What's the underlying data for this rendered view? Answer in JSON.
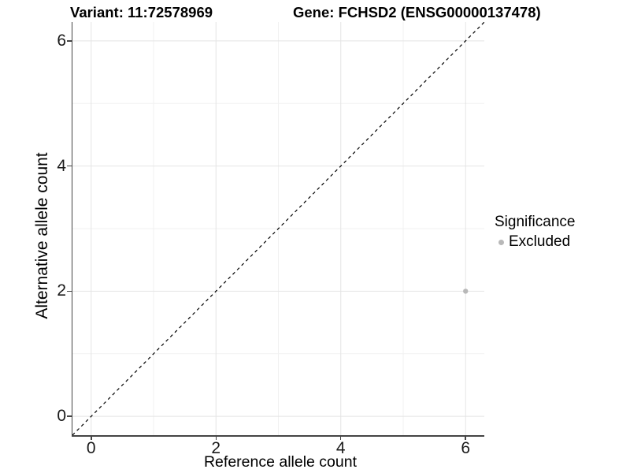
{
  "titles": {
    "variant": "Variant: 11:72578969",
    "gene": "Gene: FCHSD2 (ENSG00000137478)"
  },
  "x_axis": {
    "label": "Reference allele count"
  },
  "y_axis": {
    "label": "Alternative allele count"
  },
  "legend": {
    "title": "Significance",
    "items": [
      {
        "label": "Excluded",
        "color": "#b8b8b8"
      }
    ]
  },
  "colors": {
    "point": "#b8b8b8",
    "grid_major": "#e4e4e4",
    "grid_minor": "#f1f1f1",
    "axis_line": "#444444",
    "reference_line": "#000000",
    "background": "#ffffff"
  },
  "chart_data": {
    "type": "scatter",
    "title_left": "Variant: 11:72578969",
    "title_right": "Gene: FCHSD2 (ENSG00000137478)",
    "xlabel": "Reference allele count",
    "ylabel": "Alternative allele count",
    "xlim": [
      -0.3,
      6.3
    ],
    "ylim": [
      -0.3,
      6.3
    ],
    "x_ticks": [
      0,
      2,
      4,
      6
    ],
    "y_ticks": [
      0,
      2,
      4,
      6
    ],
    "x_minor_gridlines": [
      1,
      3,
      5
    ],
    "y_minor_gridlines": [
      1,
      3,
      5
    ],
    "grid": "on",
    "legend_position": "right",
    "series": [
      {
        "name": "Excluded",
        "color": "#b8b8b8",
        "points": [
          {
            "x": 6,
            "y": 2
          }
        ]
      }
    ],
    "reference_line": {
      "equation": "y = x",
      "style": "dashed",
      "color": "#000000"
    }
  }
}
